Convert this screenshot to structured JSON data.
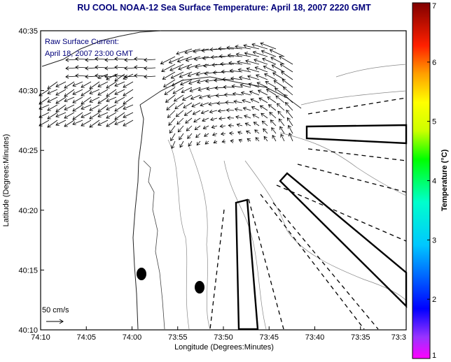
{
  "title": "RU COOL  NOAA-12  Sea Surface Temperature:  April 18, 2007 2220 GMT",
  "overlay": {
    "line1": "Raw Surface Current:",
    "line2": "April 18, 2007 23:00 GMT"
  },
  "scale_label": "50 cm/s",
  "axes": {
    "xlabel": "Longitude (Degrees:Minutes)",
    "ylabel": "Latitude (Degrees:Minutes)",
    "xticks": [
      "74:10",
      "74:05",
      "74:00",
      "73:55",
      "73:50",
      "73:45",
      "73:40",
      "73:35",
      "73:3"
    ],
    "yticks": [
      "40:35",
      "40:30",
      "40:25",
      "40:20",
      "40:15",
      "40:10"
    ]
  },
  "colorbar": {
    "label": "Temperature (°C)",
    "ticks": [
      "7",
      "6",
      "5",
      "4",
      "3",
      "2",
      "1"
    ]
  }
}
